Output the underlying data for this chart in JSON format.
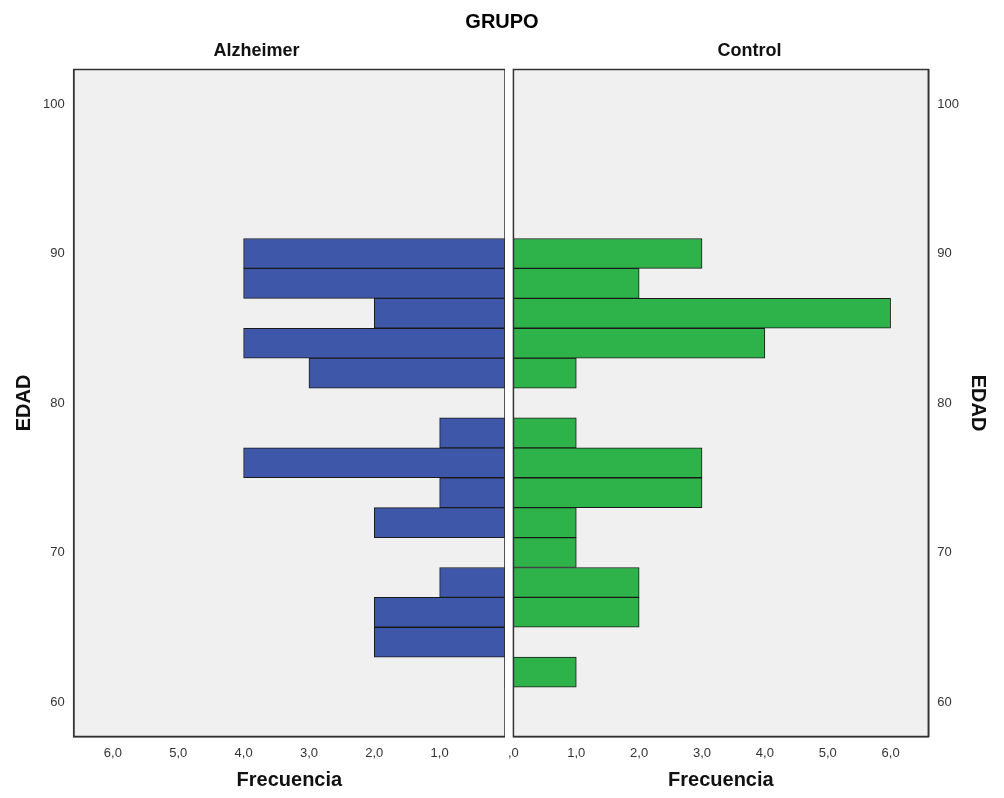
{
  "chart_data": [
    {
      "type": "histogram",
      "title": "GRUPO",
      "subtitle": "Alzheimer",
      "orientation": "horizontal",
      "bins": [
        61,
        63,
        65,
        67,
        69,
        71,
        73,
        75,
        77,
        79,
        81,
        83,
        85,
        87,
        89,
        91
      ],
      "values": [
        0,
        2,
        2,
        1,
        0,
        2,
        1,
        4,
        1,
        0,
        3,
        4,
        2,
        4,
        4
      ],
      "color": "#3f57a8",
      "xlim": [
        6.6,
        0
      ],
      "xticks": [
        {
          "value": 6,
          "label": "6,0"
        },
        {
          "value": 5,
          "label": "5,0"
        },
        {
          "value": 4,
          "label": "4,0"
        },
        {
          "value": 3,
          "label": "3,0"
        },
        {
          "value": 2,
          "label": "2,0"
        },
        {
          "value": 1,
          "label": "1,0"
        }
      ],
      "ylim": [
        57.7,
        102.3
      ],
      "yticks": [
        60,
        70,
        80,
        90,
        100
      ],
      "xlabel": "Frecuencia",
      "ylabel": "EDAD"
    },
    {
      "type": "histogram",
      "subtitle": "Control",
      "orientation": "horizontal",
      "bins": [
        61,
        63,
        65,
        67,
        69,
        71,
        73,
        75,
        77,
        79,
        81,
        83,
        85,
        87,
        89,
        91
      ],
      "values": [
        1,
        0,
        2,
        2,
        1,
        1,
        3,
        3,
        1,
        0,
        1,
        4,
        6,
        2,
        3
      ],
      "color": "#2db34a",
      "xlim": [
        0,
        6.6
      ],
      "xticks": [
        {
          "value": 0,
          "label": ",0"
        },
        {
          "value": 1,
          "label": "1,0"
        },
        {
          "value": 2,
          "label": "2,0"
        },
        {
          "value": 3,
          "label": "3,0"
        },
        {
          "value": 4,
          "label": "4,0"
        },
        {
          "value": 5,
          "label": "5,0"
        },
        {
          "value": 6,
          "label": "6,0"
        }
      ],
      "ylim": [
        57.7,
        102.3
      ],
      "yticks": [
        60,
        70,
        80,
        90,
        100
      ],
      "xlabel": "Frecuencia",
      "ylabel": "EDAD"
    }
  ]
}
